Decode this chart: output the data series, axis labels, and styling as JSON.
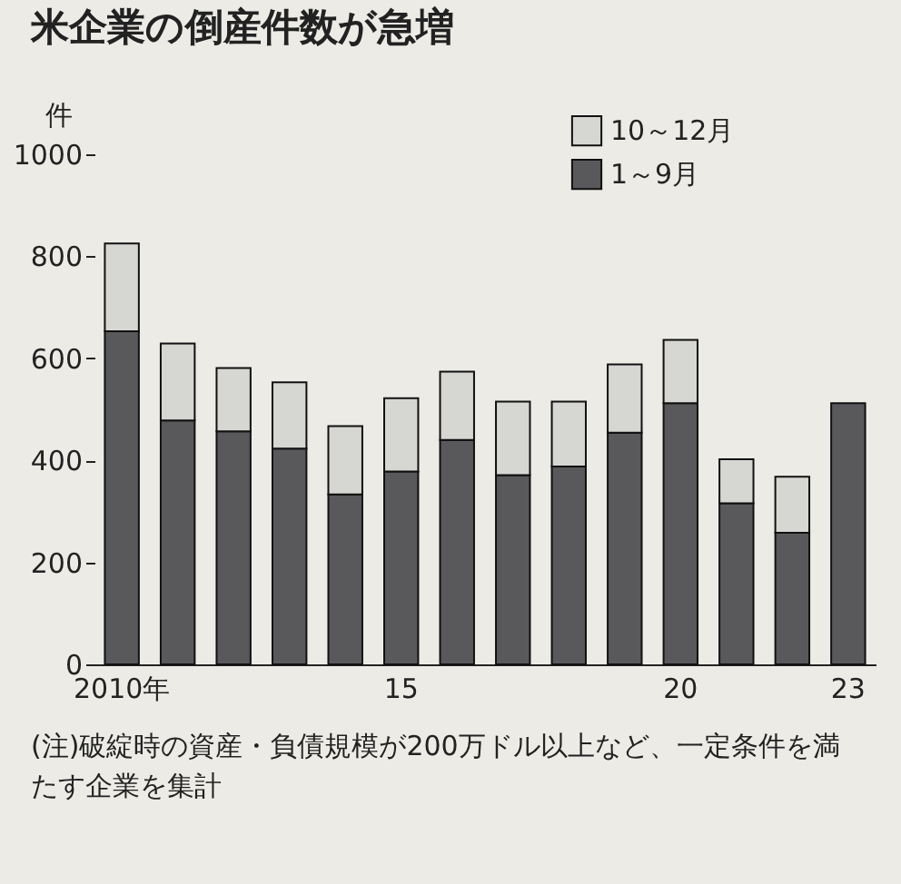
{
  "chart_data": {
    "type": "bar",
    "title": "米企業の倒産件数が急増",
    "ylabel": "件",
    "stacked": true,
    "categories": [
      "2010年",
      null,
      null,
      null,
      null,
      "15",
      null,
      null,
      null,
      null,
      "20",
      null,
      null,
      "23"
    ],
    "series": [
      {
        "name": "1～9月",
        "color": "#59595b",
        "values": [
          653,
          478,
          457,
          423,
          333,
          378,
          440,
          371,
          388,
          454,
          512,
          316,
          258,
          512
        ]
      },
      {
        "name": "10～12月",
        "color": "#d6d6d3",
        "values": [
          172,
          151,
          124,
          130,
          134,
          144,
          134,
          144,
          127,
          134,
          124,
          86,
          110,
          null
        ]
      }
    ],
    "ylim": [
      0,
      1000
    ],
    "yticks": [
      0,
      200,
      400,
      600,
      800,
      1000
    ],
    "legend": "top right",
    "annotations": [
      "(注)破綻時の資産・負債規模が200万ドル以上など、一定条件を満たす企業を集計"
    ]
  }
}
